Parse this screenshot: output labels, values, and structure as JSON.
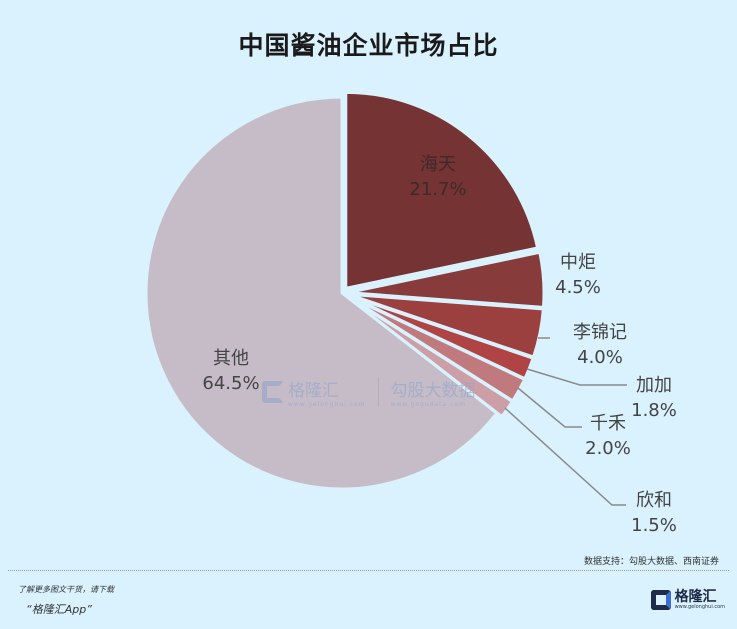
{
  "chart_data": {
    "type": "pie",
    "title": "中国酱油企业市场占比",
    "start_angle": "12 o'clock",
    "direction": "clockwise",
    "slices": [
      {
        "label": "海天",
        "value": 21.7,
        "value_label": "21.7%",
        "color": "#763333"
      },
      {
        "label": "中炬",
        "value": 4.5,
        "value_label": "4.5%",
        "color": "#883b3b"
      },
      {
        "label": "李锦记",
        "value": 4.0,
        "value_label": "4.0%",
        "color": "#9b3f3f"
      },
      {
        "label": "加加",
        "value": 1.8,
        "value_label": "1.8%",
        "color": "#b04444"
      },
      {
        "label": "千禾",
        "value": 2.0,
        "value_label": "2.0%",
        "color": "#c07a7e"
      },
      {
        "label": "欣和",
        "value": 1.5,
        "value_label": "1.5%",
        "color": "#cc9fa6"
      },
      {
        "label": "其他",
        "value": 64.5,
        "value_label": "64.5%",
        "color": "#c5bcc8"
      }
    ],
    "legend": "none",
    "data_labels": "category and percentage"
  },
  "header": {
    "title": "中国酱油企业市场占比"
  },
  "watermark": {
    "brand": "格隆汇",
    "brand_url": "www.gelonghui.com",
    "data_brand": "勾股大数据",
    "data_url": "www.gogudata.com"
  },
  "footer": {
    "source": "数据支持：勾股大数据、西南证券",
    "promo_line1": "了解更多图文干货，请下载",
    "promo_line2": "“格隆汇App”",
    "brand_name": "格隆汇",
    "brand_url": "www.gelonghui.com"
  }
}
